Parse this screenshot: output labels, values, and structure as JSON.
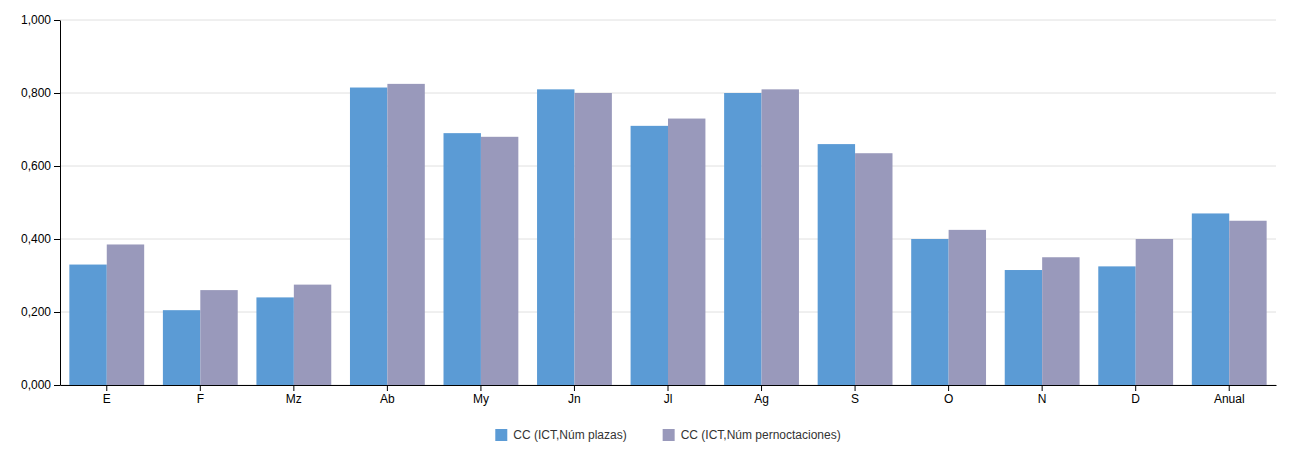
{
  "chart_data": {
    "type": "bar",
    "categories": [
      "E",
      "F",
      "Mz",
      "Ab",
      "My",
      "Jn",
      "Jl",
      "Ag",
      "S",
      "O",
      "N",
      "D",
      "Anual"
    ],
    "series": [
      {
        "name": "CC (ICT,Núm plazas)",
        "color": "#5B9BD5",
        "values": [
          0.33,
          0.205,
          0.24,
          0.815,
          0.69,
          0.81,
          0.71,
          0.8,
          0.66,
          0.4,
          0.315,
          0.325,
          0.47
        ]
      },
      {
        "name": "CC (ICT,Núm pernoctaciones)",
        "color": "#9999BB",
        "values": [
          0.385,
          0.26,
          0.275,
          0.825,
          0.68,
          0.8,
          0.73,
          0.81,
          0.635,
          0.425,
          0.35,
          0.4,
          0.45
        ]
      }
    ],
    "ylim": [
      0,
      1.0
    ],
    "yticks": [
      {
        "value": 0.0,
        "label": "0,000"
      },
      {
        "value": 0.2,
        "label": "0,200"
      },
      {
        "value": 0.4,
        "label": "0,400"
      },
      {
        "value": 0.6,
        "label": "0,600"
      },
      {
        "value": 0.8,
        "label": "0,800"
      },
      {
        "value": 1.0,
        "label": "1,000"
      }
    ],
    "grid": true,
    "legend": "bottom"
  }
}
